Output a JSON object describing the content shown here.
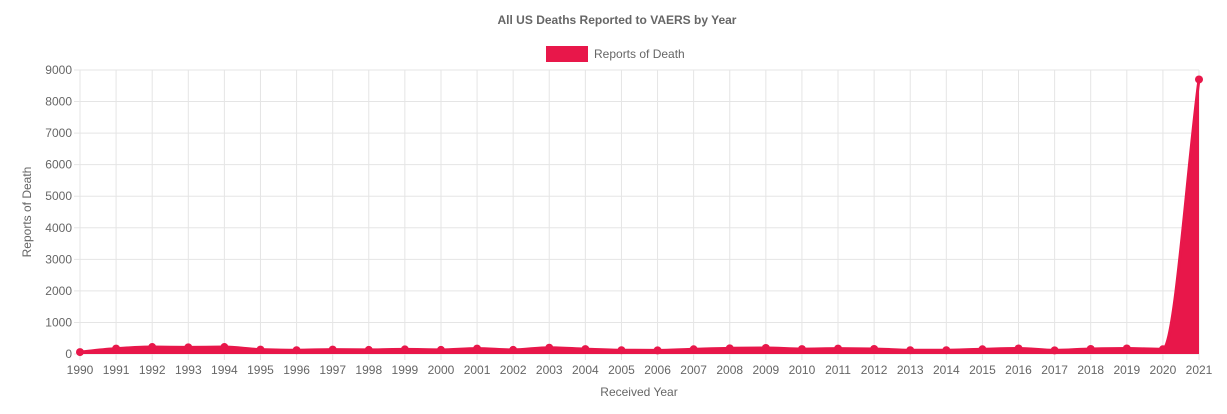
{
  "colors": {
    "series": "#e8174a",
    "grid": "#e5e5e5",
    "text": "#666666"
  },
  "chart_data": {
    "type": "area",
    "title": "All US Deaths Reported to VAERS by Year",
    "xlabel": "Received Year",
    "ylabel": "Reports of Death",
    "categories": [
      "1990",
      "1991",
      "1992",
      "1993",
      "1994",
      "1995",
      "1996",
      "1997",
      "1998",
      "1999",
      "2000",
      "2001",
      "2002",
      "2003",
      "2004",
      "2005",
      "2006",
      "2007",
      "2008",
      "2009",
      "2010",
      "2011",
      "2012",
      "2013",
      "2014",
      "2015",
      "2016",
      "2017",
      "2018",
      "2019",
      "2020",
      "2021"
    ],
    "series": [
      {
        "name": "Reports of Death",
        "values": [
          60,
          170,
          220,
          210,
          220,
          140,
          120,
          140,
          130,
          145,
          130,
          170,
          130,
          200,
          155,
          120,
          115,
          150,
          180,
          190,
          155,
          170,
          160,
          120,
          120,
          150,
          175,
          115,
          160,
          175,
          150,
          8700
        ]
      }
    ],
    "ylim": [
      0,
      9000
    ],
    "yticks": [
      0,
      1000,
      2000,
      3000,
      4000,
      5000,
      6000,
      7000,
      8000,
      9000
    ],
    "grid": true,
    "legend": "top-center"
  }
}
